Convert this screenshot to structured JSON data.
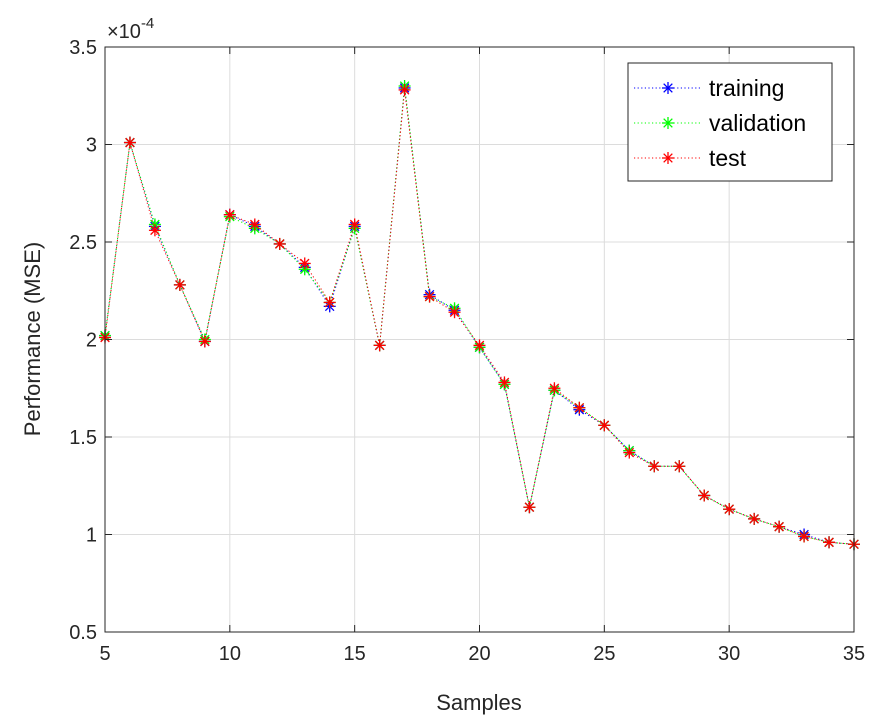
{
  "chart_data": {
    "type": "line",
    "title": "",
    "xlabel": "Samples",
    "ylabel": "Performance (MSE)",
    "y_exponent_label": "×10",
    "y_exponent_power": "-4",
    "xlim": [
      5,
      35
    ],
    "ylim": [
      0.5,
      3.5
    ],
    "xticks": [
      5,
      10,
      15,
      20,
      25,
      30,
      35
    ],
    "yticks": [
      0.5,
      1,
      1.5,
      2,
      2.5,
      3,
      3.5
    ],
    "xtick_labels": [
      "5",
      "10",
      "15",
      "20",
      "25",
      "30",
      "35"
    ],
    "ytick_labels": [
      "0.5",
      "1",
      "1.5",
      "2",
      "2.5",
      "3",
      "3.5"
    ],
    "grid": true,
    "legend_position": "top-right",
    "x": [
      5,
      6,
      7,
      8,
      9,
      10,
      11,
      12,
      13,
      14,
      15,
      16,
      17,
      18,
      19,
      20,
      21,
      22,
      23,
      24,
      25,
      26,
      27,
      28,
      29,
      30,
      31,
      32,
      33,
      34,
      35
    ],
    "series": [
      {
        "name": "training",
        "color": "#0000ff",
        "values": [
          2.02,
          3.01,
          2.58,
          2.28,
          1.99,
          2.64,
          2.58,
          2.49,
          2.37,
          2.17,
          2.58,
          1.97,
          3.29,
          2.23,
          2.15,
          1.96,
          1.77,
          1.14,
          1.74,
          1.64,
          1.56,
          1.43,
          1.35,
          1.35,
          1.2,
          1.13,
          1.08,
          1.04,
          1.0,
          0.96,
          0.95
        ]
      },
      {
        "name": "validation",
        "color": "#00ff00",
        "values": [
          2.02,
          3.01,
          2.59,
          2.28,
          2.0,
          2.63,
          2.57,
          2.49,
          2.36,
          2.19,
          2.57,
          1.97,
          3.3,
          2.22,
          2.16,
          1.96,
          1.77,
          1.14,
          1.74,
          1.65,
          1.56,
          1.43,
          1.35,
          1.35,
          1.2,
          1.13,
          1.08,
          1.04,
          0.99,
          0.96,
          0.95
        ]
      },
      {
        "name": "test",
        "color": "#ff0000",
        "values": [
          2.01,
          3.01,
          2.56,
          2.28,
          1.99,
          2.64,
          2.59,
          2.49,
          2.39,
          2.19,
          2.59,
          1.97,
          3.28,
          2.22,
          2.14,
          1.97,
          1.78,
          1.14,
          1.75,
          1.65,
          1.56,
          1.42,
          1.35,
          1.35,
          1.2,
          1.13,
          1.08,
          1.04,
          0.99,
          0.96,
          0.95
        ]
      }
    ]
  }
}
